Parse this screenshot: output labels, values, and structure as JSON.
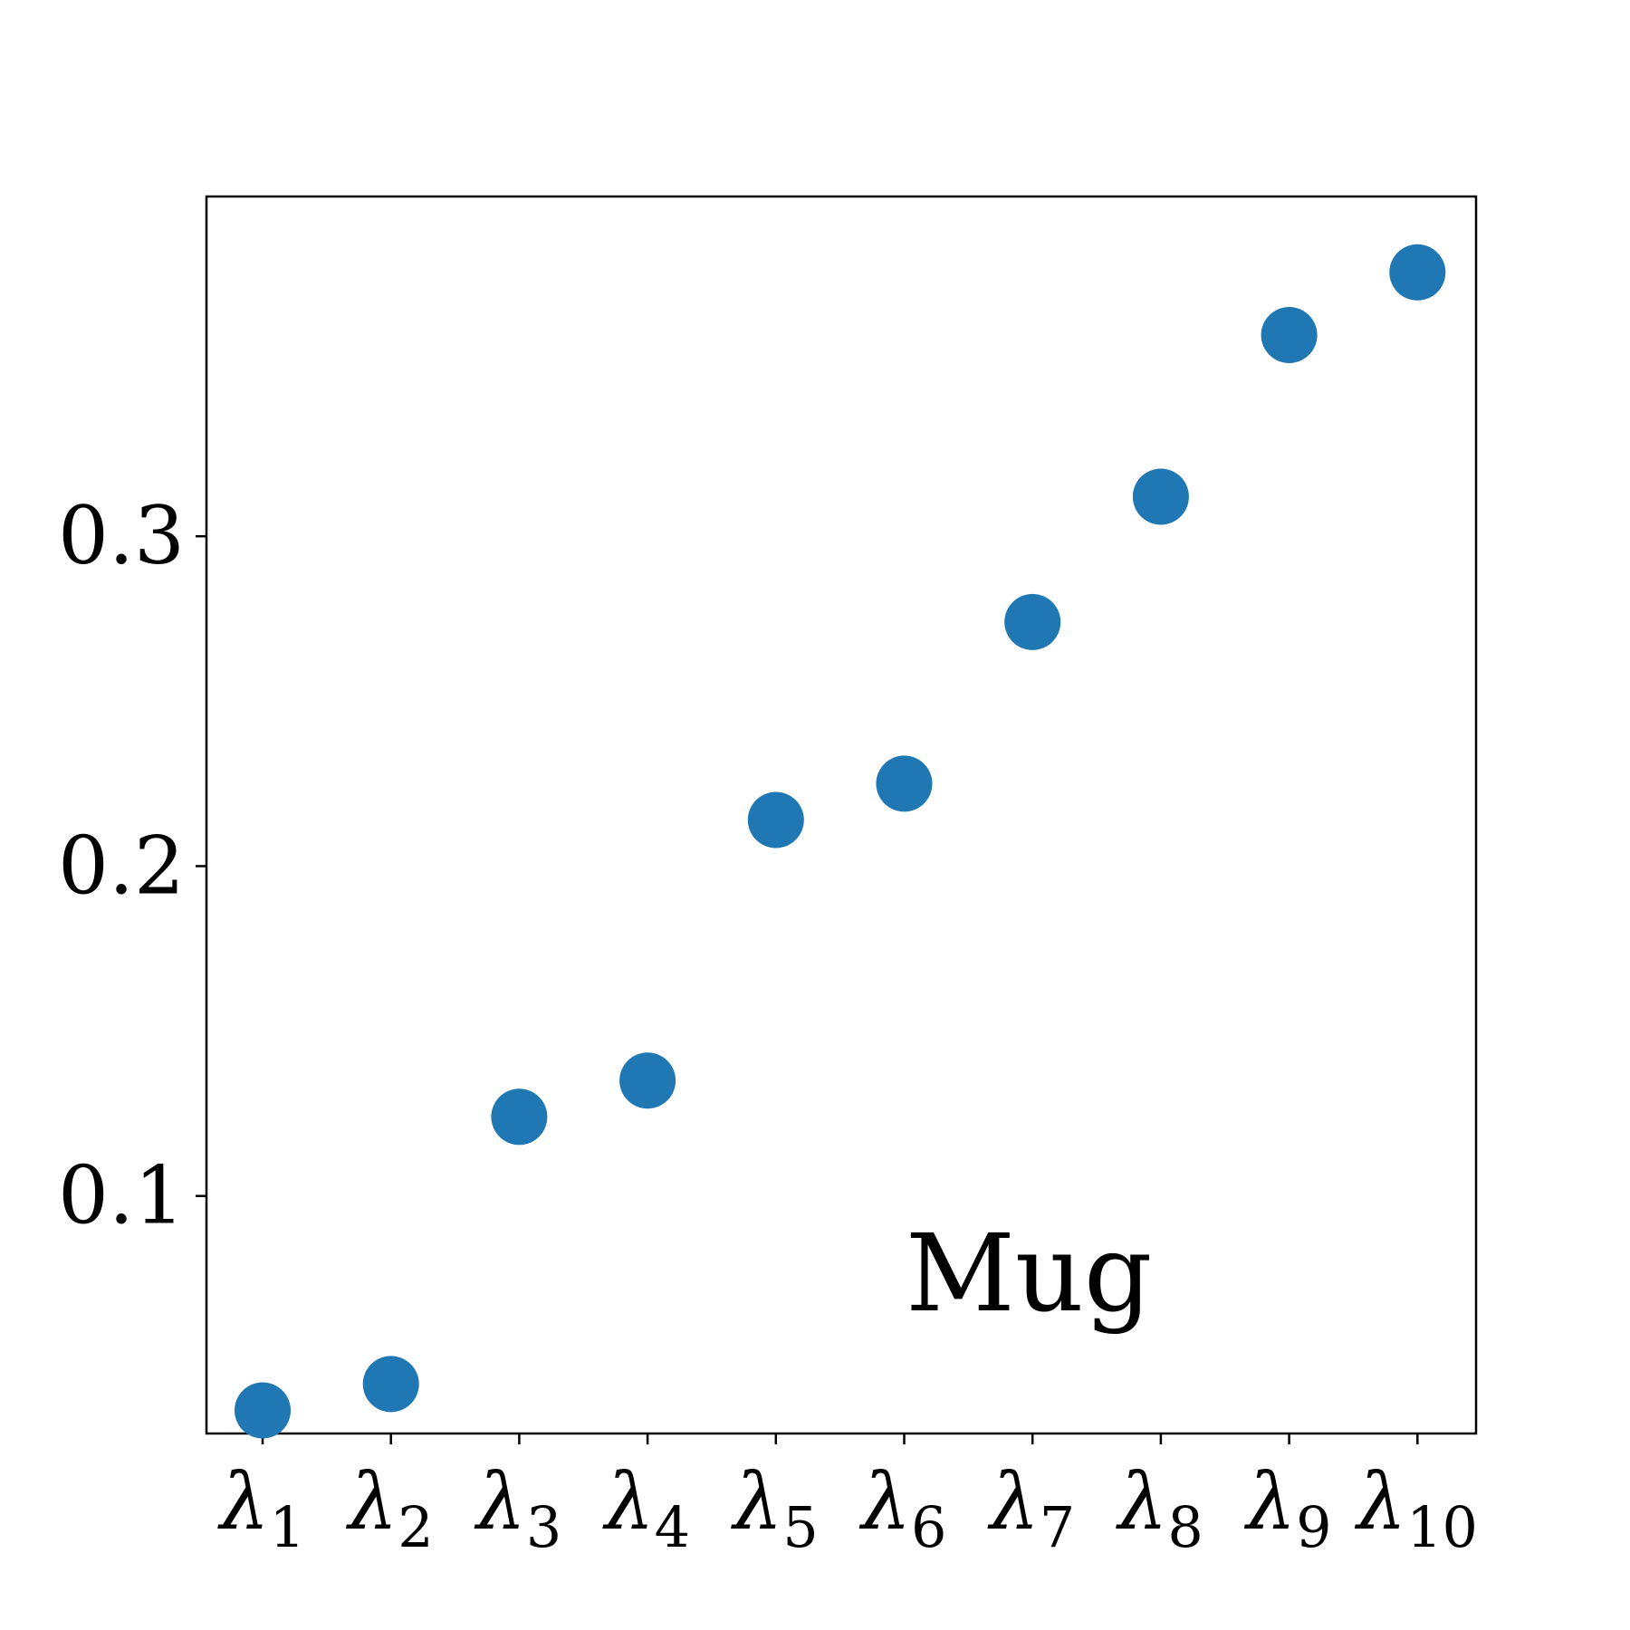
{
  "chart_data": {
    "type": "scatter",
    "title": "",
    "xlabel": "",
    "ylabel": "",
    "categories": [
      "λ1",
      "λ2",
      "λ3",
      "λ4",
      "λ5",
      "λ6",
      "λ7",
      "λ8",
      "λ9",
      "λ10"
    ],
    "x_ticks": [
      {
        "base": "λ",
        "sub": "1"
      },
      {
        "base": "λ",
        "sub": "2"
      },
      {
        "base": "λ",
        "sub": "3"
      },
      {
        "base": "λ",
        "sub": "4"
      },
      {
        "base": "λ",
        "sub": "5"
      },
      {
        "base": "λ",
        "sub": "6"
      },
      {
        "base": "λ",
        "sub": "7"
      },
      {
        "base": "λ",
        "sub": "8"
      },
      {
        "base": "λ",
        "sub": "9"
      },
      {
        "base": "λ",
        "sub": "10"
      }
    ],
    "values": [
      0.035,
      0.043,
      0.124,
      0.135,
      0.214,
      0.225,
      0.274,
      0.312,
      0.361,
      0.38
    ],
    "ylim": [
      0.028,
      0.403
    ],
    "y_ticks": [
      0.1,
      0.2,
      0.3
    ],
    "y_tick_labels": [
      "0.1",
      "0.2",
      "0.3"
    ],
    "annotation": "Mug",
    "grid": false,
    "legend": false,
    "marker_color": "#1f77b4"
  }
}
